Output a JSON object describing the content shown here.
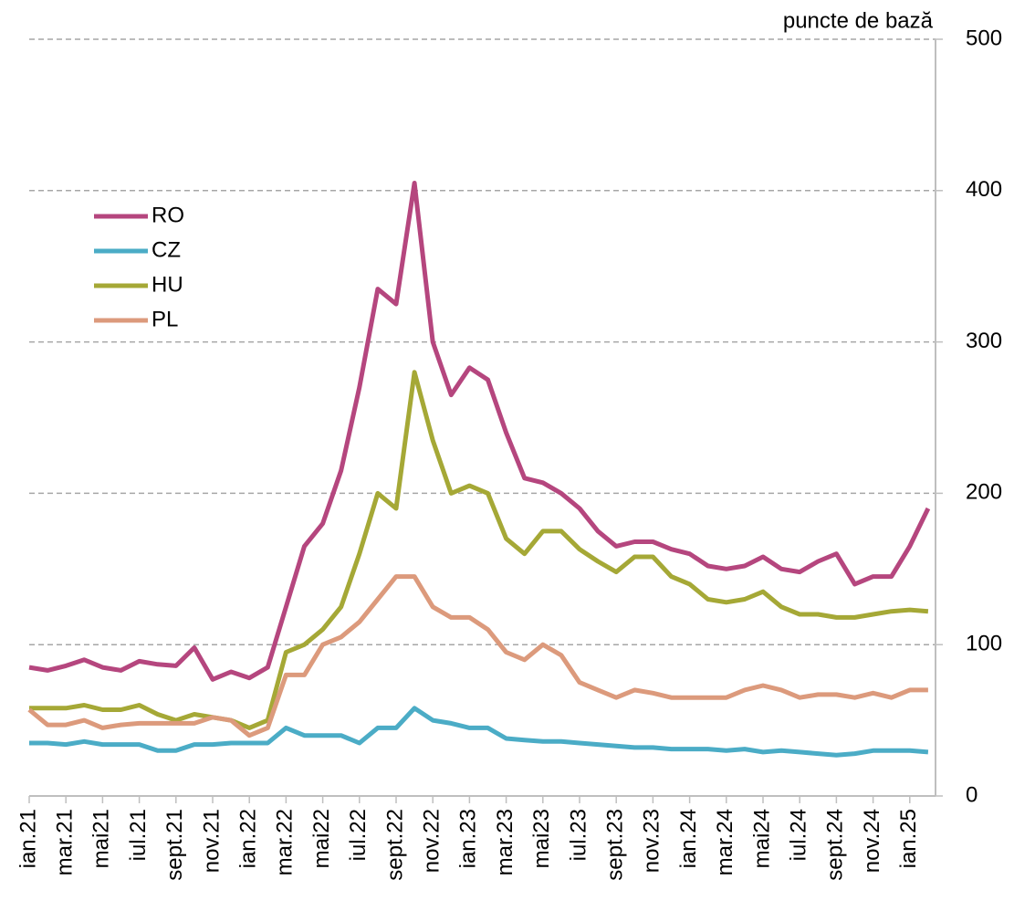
{
  "chart_data": {
    "type": "line",
    "y_axis_label": "puncte de bază",
    "categories": [
      "ian.21",
      null,
      "mar.21",
      null,
      "mai21",
      null,
      "iul.21",
      null,
      "sept.21",
      null,
      "nov.21",
      null,
      "ian.22",
      null,
      "mar.22",
      null,
      "mai22",
      null,
      "iul.22",
      null,
      "sept.22",
      null,
      "nov.22",
      null,
      "ian.23",
      null,
      "mar.23",
      null,
      "mai23",
      null,
      "iul.23",
      null,
      "sept.23",
      null,
      "nov.23",
      null,
      "ian.24",
      null,
      "mar.24",
      null,
      "mai24",
      null,
      "iul.24",
      null,
      "sept.24",
      null,
      "nov.24",
      null,
      "ian.25",
      null
    ],
    "series": [
      {
        "name": "RO",
        "color": "#b5467e",
        "values": [
          85,
          83,
          86,
          90,
          85,
          83,
          89,
          87,
          86,
          98,
          77,
          82,
          78,
          85,
          125,
          165,
          180,
          215,
          270,
          335,
          325,
          405,
          300,
          265,
          283,
          275,
          240,
          210,
          207,
          200,
          190,
          175,
          165,
          168,
          168,
          163,
          160,
          152,
          150,
          152,
          158,
          150,
          148,
          155,
          160,
          140,
          145,
          145,
          165,
          190
        ]
      },
      {
        "name": "CZ",
        "color": "#4bacc6",
        "values": [
          35,
          35,
          34,
          36,
          34,
          34,
          34,
          30,
          30,
          34,
          34,
          35,
          35,
          35,
          45,
          40,
          40,
          40,
          35,
          45,
          45,
          58,
          50,
          48,
          45,
          45,
          38,
          37,
          36,
          36,
          35,
          34,
          33,
          32,
          32,
          31,
          31,
          31,
          30,
          31,
          29,
          30,
          29,
          28,
          27,
          28,
          30,
          30,
          30,
          29
        ]
      },
      {
        "name": "HU",
        "color": "#a5a836",
        "values": [
          58,
          58,
          58,
          60,
          57,
          57,
          60,
          54,
          50,
          54,
          52,
          50,
          45,
          50,
          95,
          100,
          110,
          125,
          160,
          200,
          190,
          280,
          235,
          200,
          205,
          200,
          170,
          160,
          175,
          175,
          163,
          155,
          148,
          158,
          158,
          145,
          140,
          130,
          128,
          130,
          135,
          125,
          120,
          120,
          118,
          118,
          120,
          122,
          123,
          122
        ]
      },
      {
        "name": "PL",
        "color": "#dc9a7c",
        "values": [
          57,
          47,
          47,
          50,
          45,
          47,
          48,
          48,
          48,
          48,
          52,
          50,
          40,
          45,
          80,
          80,
          100,
          105,
          115,
          130,
          145,
          145,
          125,
          118,
          118,
          110,
          95,
          90,
          100,
          93,
          75,
          70,
          65,
          70,
          68,
          65,
          65,
          65,
          65,
          70,
          73,
          70,
          65,
          67,
          67,
          65,
          68,
          65,
          70,
          70
        ]
      }
    ],
    "ylim": [
      0,
      500
    ],
    "yticks": [
      0,
      100,
      200,
      300,
      400,
      500
    ],
    "grid": true,
    "legend": "upper left"
  }
}
